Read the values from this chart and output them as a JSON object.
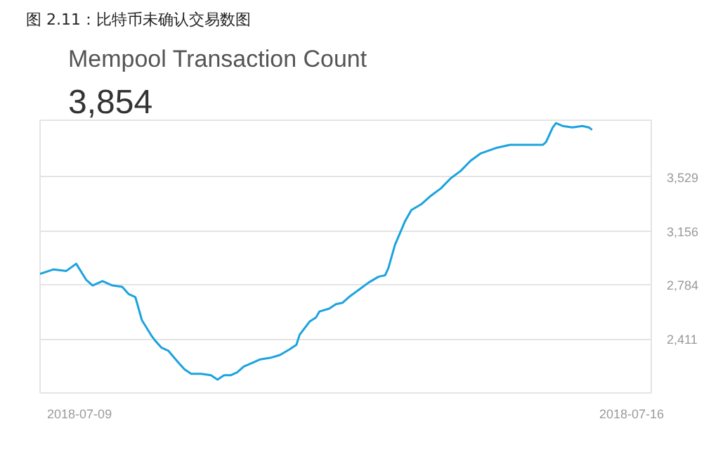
{
  "chart_data": {
    "type": "line",
    "title": "图 2.11：比特币未确认交易数图",
    "subtitle": "Mempool Transaction Count",
    "annotations": [
      "3,854"
    ],
    "x": [
      "2018-07-08T12:00",
      "2018-07-08T16:00",
      "2018-07-08T20:00",
      "2018-07-08T23:00",
      "2018-07-09T02:00",
      "2018-07-09T04:00",
      "2018-07-09T07:00",
      "2018-07-09T10:00",
      "2018-07-09T13:00",
      "2018-07-09T15:00",
      "2018-07-09T17:00",
      "2018-07-09T19:00",
      "2018-07-09T22:00",
      "2018-07-09T23:00",
      "2018-07-10T01:00",
      "2018-07-10T03:00",
      "2018-07-10T06:00",
      "2018-07-10T08:00",
      "2018-07-10T10:00",
      "2018-07-10T13:00",
      "2018-07-10T16:00",
      "2018-07-10T18:00",
      "2018-07-10T20:00",
      "2018-07-10T22:00",
      "2018-07-11T00:00",
      "2018-07-11T02:00",
      "2018-07-11T05:00",
      "2018-07-11T07:00",
      "2018-07-11T10:00",
      "2018-07-11T13:00",
      "2018-07-11T16:00",
      "2018-07-11T18:00",
      "2018-07-11T19:00",
      "2018-07-11T22:00",
      "2018-07-12T00:00",
      "2018-07-12T01:00",
      "2018-07-12T04:00",
      "2018-07-12T06:00",
      "2018-07-12T08:00",
      "2018-07-12T10:00",
      "2018-07-12T13:00",
      "2018-07-12T16:00",
      "2018-07-12T19:00",
      "2018-07-12T21:00",
      "2018-07-12T22:00",
      "2018-07-13T00:00",
      "2018-07-13T03:00",
      "2018-07-13T05:00",
      "2018-07-13T08:00",
      "2018-07-13T11:00",
      "2018-07-13T14:00",
      "2018-07-13T17:00",
      "2018-07-13T20:00",
      "2018-07-13T23:00",
      "2018-07-14T02:00",
      "2018-07-14T07:00",
      "2018-07-14T11:00",
      "2018-07-14T16:00",
      "2018-07-14T21:00",
      "2018-07-14T22:00",
      "2018-07-15T00:00",
      "2018-07-15T01:00",
      "2018-07-15T03:00",
      "2018-07-15T06:00",
      "2018-07-15T09:00",
      "2018-07-15T11:00",
      "2018-07-15T12:00"
    ],
    "series": [
      {
        "color": "#1ca3de",
        "values": [
          2860,
          2890,
          2880,
          2930,
          2820,
          2780,
          2810,
          2780,
          2770,
          2720,
          2700,
          2540,
          2430,
          2400,
          2350,
          2330,
          2250,
          2200,
          2170,
          2170,
          2160,
          2130,
          2160,
          2160,
          2180,
          2220,
          2250,
          2270,
          2280,
          2300,
          2340,
          2370,
          2440,
          2530,
          2560,
          2600,
          2620,
          2650,
          2660,
          2700,
          2750,
          2800,
          2840,
          2850,
          2900,
          3060,
          3220,
          3300,
          3340,
          3400,
          3450,
          3520,
          3570,
          3640,
          3690,
          3730,
          3750,
          3750,
          3750,
          3770,
          3870,
          3900,
          3880,
          3870,
          3880,
          3870,
          3854
        ]
      }
    ],
    "xlim": [
      "2018-07-08T12:00",
      "2018-07-16T06:00"
    ],
    "xticks": [
      "2018-07-09",
      "2018-07-16"
    ],
    "ylim": [
      2038,
      3920
    ],
    "yticks": [
      {
        "value": 2038,
        "label": null
      },
      {
        "value": 2411,
        "label": "2,411"
      },
      {
        "value": 2784,
        "label": "2,784"
      },
      {
        "value": 3156,
        "label": "3,156"
      },
      {
        "value": 3529,
        "label": "3,529"
      }
    ],
    "grid": "y",
    "marker": "none",
    "line_style": "solid"
  }
}
